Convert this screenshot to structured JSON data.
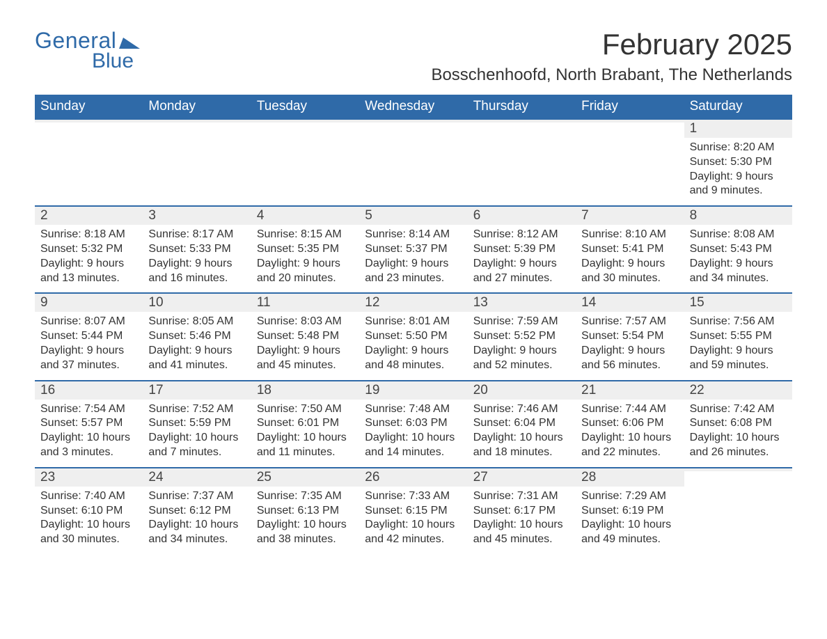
{
  "logo": {
    "text1": "General",
    "text2": "Blue"
  },
  "title": "February 2025",
  "location": "Bosschenhoofd, North Brabant, The Netherlands",
  "colors": {
    "header_bg": "#2f6aa8",
    "header_text": "#ffffff",
    "daynum_bg": "#efefef",
    "week_border": "#2f6aa8",
    "body_text": "#333333",
    "logo_color": "#2f6aa8"
  },
  "typography": {
    "title_fontsize": 42,
    "location_fontsize": 24,
    "header_fontsize": 19,
    "daynum_fontsize": 19,
    "body_fontsize": 16
  },
  "layout": {
    "columns": 7,
    "rows": 5
  },
  "daylabels": [
    "Sunday",
    "Monday",
    "Tuesday",
    "Wednesday",
    "Thursday",
    "Friday",
    "Saturday"
  ],
  "weeks": [
    [
      {
        "n": "",
        "sr": "",
        "ss": "",
        "dl": ""
      },
      {
        "n": "",
        "sr": "",
        "ss": "",
        "dl": ""
      },
      {
        "n": "",
        "sr": "",
        "ss": "",
        "dl": ""
      },
      {
        "n": "",
        "sr": "",
        "ss": "",
        "dl": ""
      },
      {
        "n": "",
        "sr": "",
        "ss": "",
        "dl": ""
      },
      {
        "n": "",
        "sr": "",
        "ss": "",
        "dl": ""
      },
      {
        "n": "1",
        "sr": "Sunrise: 8:20 AM",
        "ss": "Sunset: 5:30 PM",
        "dl": "Daylight: 9 hours and 9 minutes."
      }
    ],
    [
      {
        "n": "2",
        "sr": "Sunrise: 8:18 AM",
        "ss": "Sunset: 5:32 PM",
        "dl": "Daylight: 9 hours and 13 minutes."
      },
      {
        "n": "3",
        "sr": "Sunrise: 8:17 AM",
        "ss": "Sunset: 5:33 PM",
        "dl": "Daylight: 9 hours and 16 minutes."
      },
      {
        "n": "4",
        "sr": "Sunrise: 8:15 AM",
        "ss": "Sunset: 5:35 PM",
        "dl": "Daylight: 9 hours and 20 minutes."
      },
      {
        "n": "5",
        "sr": "Sunrise: 8:14 AM",
        "ss": "Sunset: 5:37 PM",
        "dl": "Daylight: 9 hours and 23 minutes."
      },
      {
        "n": "6",
        "sr": "Sunrise: 8:12 AM",
        "ss": "Sunset: 5:39 PM",
        "dl": "Daylight: 9 hours and 27 minutes."
      },
      {
        "n": "7",
        "sr": "Sunrise: 8:10 AM",
        "ss": "Sunset: 5:41 PM",
        "dl": "Daylight: 9 hours and 30 minutes."
      },
      {
        "n": "8",
        "sr": "Sunrise: 8:08 AM",
        "ss": "Sunset: 5:43 PM",
        "dl": "Daylight: 9 hours and 34 minutes."
      }
    ],
    [
      {
        "n": "9",
        "sr": "Sunrise: 8:07 AM",
        "ss": "Sunset: 5:44 PM",
        "dl": "Daylight: 9 hours and 37 minutes."
      },
      {
        "n": "10",
        "sr": "Sunrise: 8:05 AM",
        "ss": "Sunset: 5:46 PM",
        "dl": "Daylight: 9 hours and 41 minutes."
      },
      {
        "n": "11",
        "sr": "Sunrise: 8:03 AM",
        "ss": "Sunset: 5:48 PM",
        "dl": "Daylight: 9 hours and 45 minutes."
      },
      {
        "n": "12",
        "sr": "Sunrise: 8:01 AM",
        "ss": "Sunset: 5:50 PM",
        "dl": "Daylight: 9 hours and 48 minutes."
      },
      {
        "n": "13",
        "sr": "Sunrise: 7:59 AM",
        "ss": "Sunset: 5:52 PM",
        "dl": "Daylight: 9 hours and 52 minutes."
      },
      {
        "n": "14",
        "sr": "Sunrise: 7:57 AM",
        "ss": "Sunset: 5:54 PM",
        "dl": "Daylight: 9 hours and 56 minutes."
      },
      {
        "n": "15",
        "sr": "Sunrise: 7:56 AM",
        "ss": "Sunset: 5:55 PM",
        "dl": "Daylight: 9 hours and 59 minutes."
      }
    ],
    [
      {
        "n": "16",
        "sr": "Sunrise: 7:54 AM",
        "ss": "Sunset: 5:57 PM",
        "dl": "Daylight: 10 hours and 3 minutes."
      },
      {
        "n": "17",
        "sr": "Sunrise: 7:52 AM",
        "ss": "Sunset: 5:59 PM",
        "dl": "Daylight: 10 hours and 7 minutes."
      },
      {
        "n": "18",
        "sr": "Sunrise: 7:50 AM",
        "ss": "Sunset: 6:01 PM",
        "dl": "Daylight: 10 hours and 11 minutes."
      },
      {
        "n": "19",
        "sr": "Sunrise: 7:48 AM",
        "ss": "Sunset: 6:03 PM",
        "dl": "Daylight: 10 hours and 14 minutes."
      },
      {
        "n": "20",
        "sr": "Sunrise: 7:46 AM",
        "ss": "Sunset: 6:04 PM",
        "dl": "Daylight: 10 hours and 18 minutes."
      },
      {
        "n": "21",
        "sr": "Sunrise: 7:44 AM",
        "ss": "Sunset: 6:06 PM",
        "dl": "Daylight: 10 hours and 22 minutes."
      },
      {
        "n": "22",
        "sr": "Sunrise: 7:42 AM",
        "ss": "Sunset: 6:08 PM",
        "dl": "Daylight: 10 hours and 26 minutes."
      }
    ],
    [
      {
        "n": "23",
        "sr": "Sunrise: 7:40 AM",
        "ss": "Sunset: 6:10 PM",
        "dl": "Daylight: 10 hours and 30 minutes."
      },
      {
        "n": "24",
        "sr": "Sunrise: 7:37 AM",
        "ss": "Sunset: 6:12 PM",
        "dl": "Daylight: 10 hours and 34 minutes."
      },
      {
        "n": "25",
        "sr": "Sunrise: 7:35 AM",
        "ss": "Sunset: 6:13 PM",
        "dl": "Daylight: 10 hours and 38 minutes."
      },
      {
        "n": "26",
        "sr": "Sunrise: 7:33 AM",
        "ss": "Sunset: 6:15 PM",
        "dl": "Daylight: 10 hours and 42 minutes."
      },
      {
        "n": "27",
        "sr": "Sunrise: 7:31 AM",
        "ss": "Sunset: 6:17 PM",
        "dl": "Daylight: 10 hours and 45 minutes."
      },
      {
        "n": "28",
        "sr": "Sunrise: 7:29 AM",
        "ss": "Sunset: 6:19 PM",
        "dl": "Daylight: 10 hours and 49 minutes."
      },
      {
        "n": "",
        "sr": "",
        "ss": "",
        "dl": ""
      }
    ]
  ]
}
